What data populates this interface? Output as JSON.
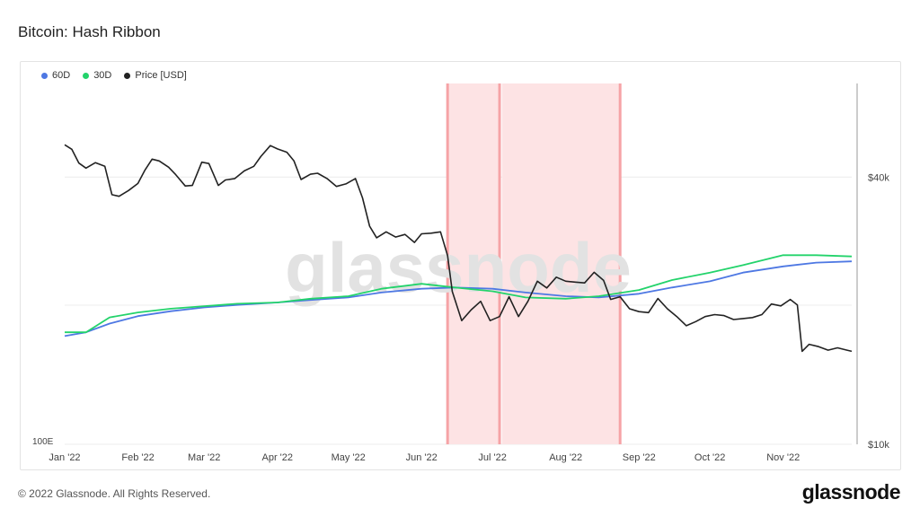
{
  "page": {
    "title": "Bitcoin: Hash Ribbon",
    "footer_copyright": "© 2022 Glassnode. All Rights Reserved.",
    "footer_logo": "glassnode",
    "watermark": "glassnode"
  },
  "colors": {
    "sixty_d": "#4e78e3",
    "thirty_d": "#23d36b",
    "price": "#222222",
    "capitulation_band": "#fde3e4",
    "capitulation_edge": "#f6a3a6"
  },
  "chart_data": {
    "type": "line",
    "title": "Bitcoin: Hash Ribbon",
    "legend": [
      {
        "name": "60D",
        "color": "#4e78e3"
      },
      {
        "name": "30D",
        "color": "#23d36b"
      },
      {
        "name": "Price [USD]",
        "color": "#222222"
      }
    ],
    "legend_position": "top-left",
    "x_tick_labels": [
      "Jan '22",
      "Feb '22",
      "Mar '22",
      "Apr '22",
      "May '22",
      "Jun '22",
      "Jul '22",
      "Aug '22",
      "Sep '22",
      "Oct '22",
      "Nov '22"
    ],
    "x_range": [
      "2022-01-01",
      "2022-11-30"
    ],
    "y_left_tick_labels": [
      "100E"
    ],
    "y_right": {
      "scale": "log",
      "ticks": [
        10000,
        40000
      ],
      "tick_labels": [
        "$10k",
        "$40k"
      ],
      "range": [
        10000,
        65000
      ]
    },
    "capitulation_bands": [
      {
        "start": "2022-06-12",
        "end": "2022-07-04"
      },
      {
        "start": "2022-07-05",
        "end": "2022-08-24"
      }
    ],
    "capitulation_lines": [
      "2022-06-12",
      "2022-07-04",
      "2022-08-24"
    ],
    "series": [
      {
        "name": "Price [USD]",
        "axis": "right",
        "x": [
          "2022-01-01",
          "2022-01-04",
          "2022-01-07",
          "2022-01-10",
          "2022-01-14",
          "2022-01-18",
          "2022-01-21",
          "2022-01-24",
          "2022-01-28",
          "2022-02-01",
          "2022-02-04",
          "2022-02-07",
          "2022-02-10",
          "2022-02-14",
          "2022-02-17",
          "2022-02-21",
          "2022-02-24",
          "2022-02-28",
          "2022-03-03",
          "2022-03-07",
          "2022-03-10",
          "2022-03-14",
          "2022-03-18",
          "2022-03-22",
          "2022-03-25",
          "2022-03-29",
          "2022-04-01",
          "2022-04-05",
          "2022-04-08",
          "2022-04-11",
          "2022-04-15",
          "2022-04-18",
          "2022-04-22",
          "2022-04-26",
          "2022-04-30",
          "2022-05-04",
          "2022-05-07",
          "2022-05-10",
          "2022-05-13",
          "2022-05-17",
          "2022-05-21",
          "2022-05-25",
          "2022-05-29",
          "2022-06-01",
          "2022-06-05",
          "2022-06-09",
          "2022-06-12",
          "2022-06-14",
          "2022-06-18",
          "2022-06-22",
          "2022-06-26",
          "2022-06-30",
          "2022-07-04",
          "2022-07-08",
          "2022-07-12",
          "2022-07-16",
          "2022-07-20",
          "2022-07-24",
          "2022-07-28",
          "2022-08-01",
          "2022-08-05",
          "2022-08-09",
          "2022-08-13",
          "2022-08-17",
          "2022-08-20",
          "2022-08-24",
          "2022-08-28",
          "2022-09-01",
          "2022-09-05",
          "2022-09-09",
          "2022-09-13",
          "2022-09-17",
          "2022-09-21",
          "2022-09-25",
          "2022-09-29",
          "2022-10-03",
          "2022-10-07",
          "2022-10-11",
          "2022-10-15",
          "2022-10-19",
          "2022-10-23",
          "2022-10-27",
          "2022-10-31",
          "2022-11-04",
          "2022-11-07",
          "2022-11-09",
          "2022-11-12",
          "2022-11-16",
          "2022-11-20",
          "2022-11-24",
          "2022-11-28",
          "2022-11-30"
        ],
        "values": [
          47300,
          46200,
          43000,
          41900,
          43100,
          42300,
          36500,
          36200,
          37300,
          38700,
          41500,
          43900,
          43500,
          42100,
          40500,
          38200,
          38300,
          43200,
          42900,
          38300,
          39400,
          39700,
          41300,
          42300,
          44500,
          47100,
          46300,
          45500,
          43500,
          39500,
          40600,
          40800,
          39700,
          38100,
          38600,
          39700,
          35900,
          31000,
          29200,
          30100,
          29300,
          29700,
          28500,
          29800,
          29900,
          30100,
          26600,
          22100,
          19000,
          20100,
          21000,
          19000,
          19400,
          21500,
          19400,
          21000,
          23300,
          22500,
          23800,
          23300,
          23200,
          23100,
          24400,
          23400,
          21200,
          21500,
          20200,
          19900,
          19800,
          21300,
          20200,
          19400,
          18500,
          18900,
          19400,
          19600,
          19500,
          19100,
          19200,
          19300,
          19600,
          20700,
          20500,
          21200,
          20600,
          16200,
          16800,
          16600,
          16300,
          16500,
          16300,
          16200
        ]
      },
      {
        "name": "60D",
        "axis": "left",
        "x": [
          "2022-01-01",
          "2022-01-10",
          "2022-01-20",
          "2022-02-01",
          "2022-02-15",
          "2022-03-01",
          "2022-03-15",
          "2022-04-01",
          "2022-04-15",
          "2022-05-01",
          "2022-05-15",
          "2022-06-01",
          "2022-06-15",
          "2022-07-01",
          "2022-07-15",
          "2022-08-01",
          "2022-08-15",
          "2022-09-01",
          "2022-09-15",
          "2022-10-01",
          "2022-10-15",
          "2022-11-01",
          "2022-11-15",
          "2022-11-30"
        ],
        "values": [
          187,
          190,
          197,
          203,
          207,
          210,
          212,
          214,
          216,
          218,
          222,
          225,
          226,
          225,
          222,
          219,
          218,
          221,
          226,
          231,
          238,
          243,
          246,
          247
        ]
      },
      {
        "name": "30D",
        "axis": "left",
        "x": [
          "2022-01-01",
          "2022-01-10",
          "2022-01-20",
          "2022-02-01",
          "2022-02-15",
          "2022-03-01",
          "2022-03-15",
          "2022-04-01",
          "2022-04-15",
          "2022-05-01",
          "2022-05-15",
          "2022-06-01",
          "2022-06-15",
          "2022-07-01",
          "2022-07-15",
          "2022-08-01",
          "2022-08-15",
          "2022-09-01",
          "2022-09-15",
          "2022-10-01",
          "2022-10-15",
          "2022-11-01",
          "2022-11-15",
          "2022-11-30"
        ],
        "values": [
          190,
          190,
          202,
          206,
          209,
          211,
          213,
          214,
          217,
          219,
          225,
          229,
          226,
          223,
          218,
          217,
          219,
          224,
          232,
          238,
          244,
          252,
          252,
          251
        ]
      }
    ]
  }
}
